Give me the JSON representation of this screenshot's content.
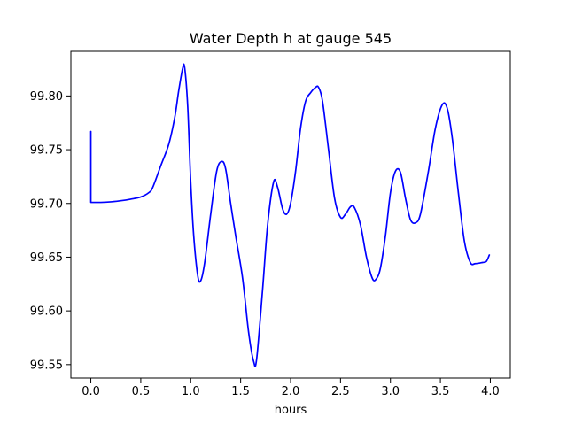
{
  "chart_data": {
    "type": "line",
    "title": "Water Depth h at gauge 545",
    "xlabel": "hours",
    "ylabel": "",
    "xlim": [
      -0.2,
      4.2
    ],
    "ylim": [
      99.5375,
      99.8415
    ],
    "xticks": [
      0.0,
      0.5,
      1.0,
      1.5,
      2.0,
      2.5,
      3.0,
      3.5,
      4.0
    ],
    "xtick_labels": [
      "0.0",
      "0.5",
      "1.0",
      "1.5",
      "2.0",
      "2.5",
      "3.0",
      "3.5",
      "4.0"
    ],
    "yticks": [
      99.55,
      99.6,
      99.65,
      99.7,
      99.75,
      99.8
    ],
    "ytick_labels": [
      "99.55",
      "99.60",
      "99.65",
      "99.70",
      "99.75",
      "99.80"
    ],
    "grid": false,
    "color": "#0000ff",
    "series": [
      {
        "name": "",
        "points": [
          [
            0.0,
            99.767
          ],
          [
            0.0,
            99.701
          ],
          [
            0.1,
            99.701
          ],
          [
            0.2,
            99.7015
          ],
          [
            0.3,
            99.7025
          ],
          [
            0.4,
            99.704
          ],
          [
            0.5,
            99.706
          ],
          [
            0.58,
            99.71
          ],
          [
            0.62,
            99.715
          ],
          [
            0.7,
            99.735
          ],
          [
            0.78,
            99.755
          ],
          [
            0.84,
            99.78
          ],
          [
            0.88,
            99.805
          ],
          [
            0.92,
            99.826
          ],
          [
            0.94,
            99.826
          ],
          [
            0.97,
            99.79
          ],
          [
            1.0,
            99.72
          ],
          [
            1.03,
            99.67
          ],
          [
            1.07,
            99.633
          ],
          [
            1.1,
            99.628
          ],
          [
            1.14,
            99.645
          ],
          [
            1.2,
            99.69
          ],
          [
            1.26,
            99.73
          ],
          [
            1.31,
            99.739
          ],
          [
            1.35,
            99.732
          ],
          [
            1.4,
            99.7
          ],
          [
            1.45,
            99.67
          ],
          [
            1.52,
            99.63
          ],
          [
            1.58,
            99.58
          ],
          [
            1.63,
            99.553
          ],
          [
            1.66,
            99.555
          ],
          [
            1.72,
            99.62
          ],
          [
            1.77,
            99.68
          ],
          [
            1.83,
            99.72
          ],
          [
            1.87,
            99.715
          ],
          [
            1.92,
            99.695
          ],
          [
            1.96,
            99.69
          ],
          [
            2.0,
            99.7
          ],
          [
            2.05,
            99.73
          ],
          [
            2.1,
            99.77
          ],
          [
            2.15,
            99.795
          ],
          [
            2.2,
            99.803
          ],
          [
            2.25,
            99.808
          ],
          [
            2.28,
            99.808
          ],
          [
            2.32,
            99.795
          ],
          [
            2.38,
            99.75
          ],
          [
            2.44,
            99.705
          ],
          [
            2.5,
            99.687
          ],
          [
            2.55,
            99.69
          ],
          [
            2.6,
            99.697
          ],
          [
            2.64,
            99.696
          ],
          [
            2.7,
            99.68
          ],
          [
            2.76,
            99.65
          ],
          [
            2.82,
            99.63
          ],
          [
            2.86,
            99.63
          ],
          [
            2.9,
            99.64
          ],
          [
            2.95,
            99.67
          ],
          [
            3.0,
            99.71
          ],
          [
            3.05,
            99.73
          ],
          [
            3.1,
            99.729
          ],
          [
            3.15,
            99.705
          ],
          [
            3.2,
            99.685
          ],
          [
            3.25,
            99.682
          ],
          [
            3.3,
            99.69
          ],
          [
            3.38,
            99.73
          ],
          [
            3.45,
            99.77
          ],
          [
            3.52,
            99.792
          ],
          [
            3.57,
            99.788
          ],
          [
            3.62,
            99.76
          ],
          [
            3.68,
            99.71
          ],
          [
            3.74,
            99.665
          ],
          [
            3.8,
            99.645
          ],
          [
            3.85,
            99.644
          ],
          [
            3.92,
            99.645
          ],
          [
            3.96,
            99.646
          ],
          [
            3.99,
            99.652
          ]
        ]
      }
    ]
  }
}
